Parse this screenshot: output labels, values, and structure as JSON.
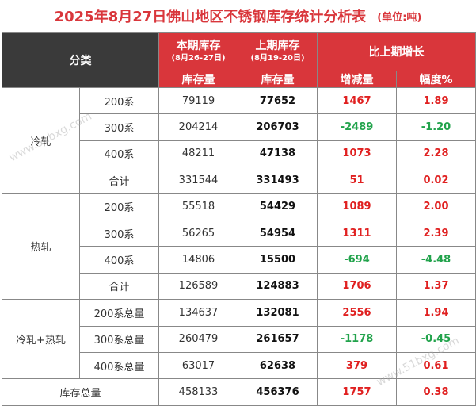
{
  "title": "2025年8月27日佛山地区不锈钢库存统计分析表",
  "unit": "(单位:吨)",
  "header": {
    "category": "分类",
    "current": "本期库存",
    "current_range": "(8月26-27日)",
    "previous": "上期库存",
    "previous_range": "(8月19-20日)",
    "growth": "比上期增长",
    "stock_label_current": "库存量",
    "stock_label_previous": "库存量",
    "change_label": "增减量",
    "pct_label": "幅度%"
  },
  "groups": [
    {
      "name": "冷轧",
      "rows": [
        {
          "sub": "200系",
          "current": "79119",
          "previous": "77652",
          "change": "1467",
          "pct": "1.89"
        },
        {
          "sub": "300系",
          "current": "204214",
          "previous": "206703",
          "change": "-2489",
          "pct": "-1.20"
        },
        {
          "sub": "400系",
          "current": "48211",
          "previous": "47138",
          "change": "1073",
          "pct": "2.28"
        },
        {
          "sub": "合计",
          "current": "331544",
          "previous": "331493",
          "change": "51",
          "pct": "0.02"
        }
      ]
    },
    {
      "name": "热轧",
      "rows": [
        {
          "sub": "200系",
          "current": "55518",
          "previous": "54429",
          "change": "1089",
          "pct": "2.00"
        },
        {
          "sub": "300系",
          "current": "56265",
          "previous": "54954",
          "change": "1311",
          "pct": "2.39"
        },
        {
          "sub": "400系",
          "current": "14806",
          "previous": "15500",
          "change": "-694",
          "pct": "-4.48"
        },
        {
          "sub": "合计",
          "current": "126589",
          "previous": "124883",
          "change": "1706",
          "pct": "1.37"
        }
      ]
    },
    {
      "name": "冷轧+热轧",
      "rows": [
        {
          "sub": "200系总量",
          "current": "134637",
          "previous": "132081",
          "change": "2556",
          "pct": "1.94"
        },
        {
          "sub": "300系总量",
          "current": "260479",
          "previous": "261657",
          "change": "-1178",
          "pct": "-0.45"
        },
        {
          "sub": "400系总量",
          "current": "63017",
          "previous": "62638",
          "change": "379",
          "pct": "0.61"
        }
      ]
    }
  ],
  "total": {
    "label": "库存总量",
    "current": "458133",
    "previous": "456376",
    "change": "1757",
    "pct": "0.38"
  },
  "watermark": "www.51bxg.com",
  "colors": {
    "header_dark": "#3a3a3a",
    "header_red": "#d9363b",
    "positive": "#e02020",
    "negative": "#22a34c"
  }
}
